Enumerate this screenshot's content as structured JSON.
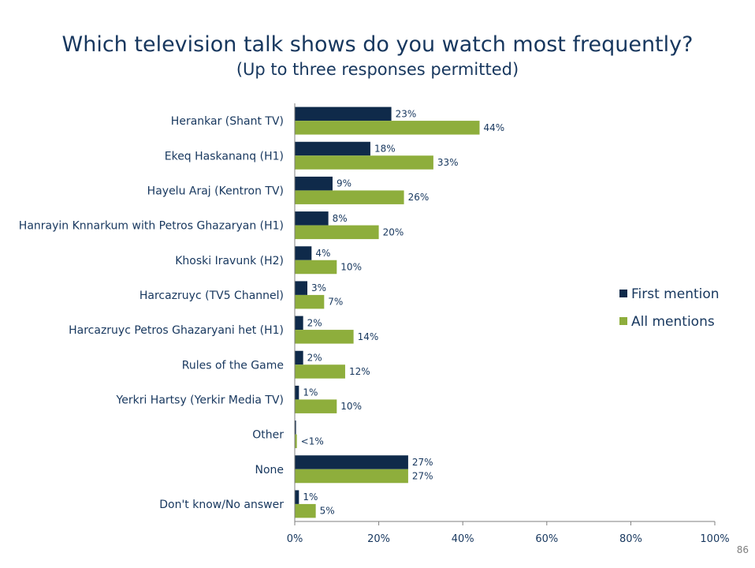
{
  "slide": {
    "title": "Which television talk shows do you watch most frequently?",
    "subtitle": "(Up to three responses permitted)",
    "page_number": "86"
  },
  "colors": {
    "first_mention": "#0f2a4a",
    "all_mentions": "#8eae3c",
    "text": "#17375e",
    "axis": "#7f7f7f"
  },
  "chart_data": {
    "type": "bar",
    "orientation": "horizontal",
    "categories": [
      "Herankar (Shant TV)",
      "Ekeq Haskananq  (H1)",
      "Hayelu Araj (Kentron TV)",
      "Hanrayin Knnarkum with Petros Ghazaryan (H1)",
      "Khoski Iravunk (H2)",
      "Harcazruyc (TV5 Channel)",
      "Harcazruyc Petros Ghazaryani het (H1)",
      "Rules of the Game",
      "Yerkri Hartsy (Yerkir Media TV)",
      "Other",
      "None",
      "Don't know/No answer"
    ],
    "series": [
      {
        "name": "First mention",
        "values": [
          23,
          18,
          9,
          8,
          4,
          3,
          2,
          2,
          1,
          0.3,
          27,
          1
        ],
        "labels": [
          "23%",
          "18%",
          "9%",
          "8%",
          "4%",
          "3%",
          "2%",
          "2%",
          "1%",
          "",
          "27%",
          "1%"
        ]
      },
      {
        "name": "All mentions",
        "values": [
          44,
          33,
          26,
          20,
          10,
          7,
          14,
          12,
          10,
          0.5,
          27,
          5
        ],
        "labels": [
          "44%",
          "33%",
          "26%",
          "20%",
          "10%",
          "7%",
          "14%",
          "12%",
          "10%",
          "<1%",
          "27%",
          "5%"
        ]
      }
    ],
    "xlim": [
      0,
      100
    ],
    "xticks": [
      "0%",
      "20%",
      "40%",
      "60%",
      "80%",
      "100%"
    ],
    "legend": "right",
    "grid": false
  }
}
